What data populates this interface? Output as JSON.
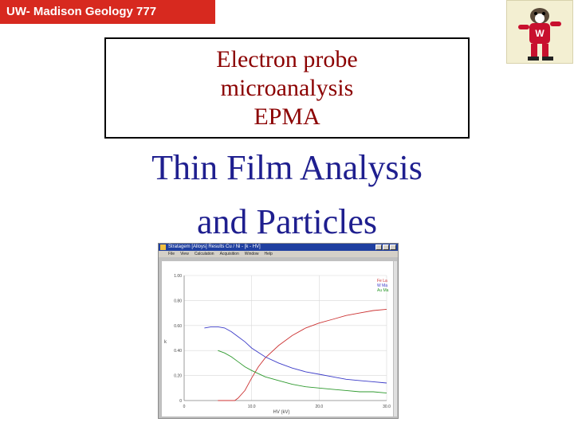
{
  "course_tag": "UW- Madison Geology  777",
  "title_lines": [
    "Electron probe",
    "microanalysis",
    "EPMA"
  ],
  "subtitle_lines": [
    "Thin Film Analysis",
    "and Particles"
  ],
  "mascot": {
    "icon": "badger-mascot-icon"
  },
  "app_window": {
    "title": "Stratagem [Alloys]  Results  Cu / Ni  - [k - HV]",
    "menu": [
      "File",
      "View",
      "Calculation",
      "Acquisition",
      "Window",
      "Help"
    ]
  },
  "chart_data": {
    "type": "line",
    "title": "",
    "xlabel": "HV (kV)",
    "ylabel": "k",
    "xlim": [
      0,
      30
    ],
    "ylim": [
      0,
      1
    ],
    "x_ticks": [
      "0",
      "10.0",
      "20.0",
      "30.0"
    ],
    "y_ticks": [
      "0",
      "0.20",
      "0.40",
      "0.60",
      "0.80",
      "1.00"
    ],
    "grid": true,
    "legend_position": "top-right",
    "series": [
      {
        "name": "Fe La",
        "color": "#cc3333",
        "x": [
          5,
          7,
          7.5,
          8,
          9,
          10,
          11,
          12,
          14,
          16,
          18,
          20,
          22,
          24,
          26,
          28,
          30
        ],
        "y": [
          0,
          0,
          0,
          0.02,
          0.08,
          0.18,
          0.27,
          0.34,
          0.44,
          0.52,
          0.58,
          0.62,
          0.65,
          0.68,
          0.7,
          0.72,
          0.73
        ]
      },
      {
        "name": "W Ma",
        "color": "#3b3bc8",
        "x": [
          3,
          4,
          5,
          6,
          7,
          8,
          9,
          10,
          12,
          14,
          16,
          18,
          20,
          22,
          24,
          26,
          28,
          30
        ],
        "y": [
          0.58,
          0.59,
          0.59,
          0.58,
          0.55,
          0.51,
          0.47,
          0.42,
          0.35,
          0.3,
          0.26,
          0.23,
          0.21,
          0.19,
          0.17,
          0.16,
          0.15,
          0.14
        ]
      },
      {
        "name": "Au Ma",
        "color": "#2e9a2e",
        "x": [
          5,
          6,
          7,
          8,
          9,
          10,
          12,
          14,
          16,
          18,
          20,
          22,
          24,
          26,
          28,
          30
        ],
        "y": [
          0.4,
          0.38,
          0.35,
          0.31,
          0.27,
          0.24,
          0.19,
          0.16,
          0.13,
          0.11,
          0.1,
          0.09,
          0.08,
          0.07,
          0.07,
          0.06
        ]
      }
    ]
  }
}
